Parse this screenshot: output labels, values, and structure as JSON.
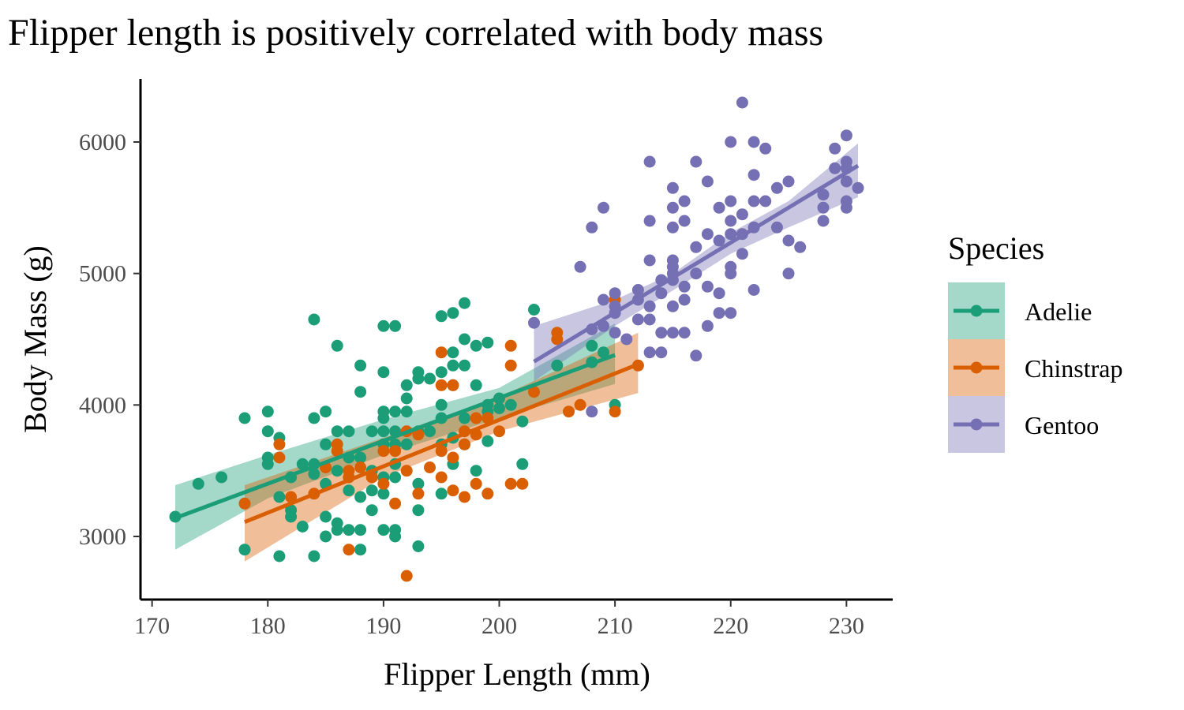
{
  "chart_data": {
    "type": "scatter",
    "title": "Flipper length is positively correlated with body mass",
    "xlabel": "Flipper Length (mm)",
    "ylabel": "Body Mass (g)",
    "xlim": [
      169,
      234
    ],
    "ylim": [
      2520,
      6480
    ],
    "xticks": [
      170,
      180,
      190,
      200,
      210,
      220,
      230
    ],
    "yticks": [
      3000,
      4000,
      5000,
      6000
    ],
    "grid": false,
    "legend": {
      "title": "Species",
      "placement": "right"
    },
    "series": [
      {
        "name": "Adelie",
        "color": "#1b9e77",
        "fit": {
          "x": [
            172,
            210
          ],
          "y": [
            3140,
            4380
          ]
        },
        "band": {
          "x": [
            172,
            180,
            190,
            200,
            210
          ],
          "upper": [
            3390,
            3620,
            3890,
            4130,
            4620
          ],
          "lower": [
            2900,
            3290,
            3620,
            3900,
            4160
          ]
        },
        "points": [
          [
            172,
            3150
          ],
          [
            174,
            3400
          ],
          [
            176,
            3450
          ],
          [
            178,
            3900
          ],
          [
            178,
            2900
          ],
          [
            180,
            3950
          ],
          [
            180,
            3800
          ],
          [
            180,
            3600
          ],
          [
            180,
            3550
          ],
          [
            181,
            3750
          ],
          [
            181,
            2850
          ],
          [
            181,
            3300
          ],
          [
            182,
            3200
          ],
          [
            182,
            3150
          ],
          [
            182,
            3450
          ],
          [
            183,
            3550
          ],
          [
            183,
            3075
          ],
          [
            184,
            4650
          ],
          [
            184,
            3900
          ],
          [
            184,
            3550
          ],
          [
            184,
            3475
          ],
          [
            184,
            2850
          ],
          [
            185,
            3950
          ],
          [
            185,
            3700
          ],
          [
            185,
            3400
          ],
          [
            185,
            3150
          ],
          [
            185,
            3000
          ],
          [
            186,
            4450
          ],
          [
            186,
            3800
          ],
          [
            186,
            3500
          ],
          [
            186,
            3100
          ],
          [
            186,
            3050
          ],
          [
            187,
            3800
          ],
          [
            187,
            3600
          ],
          [
            187,
            3450
          ],
          [
            187,
            3350
          ],
          [
            187,
            3050
          ],
          [
            188,
            4300
          ],
          [
            188,
            4100
          ],
          [
            188,
            3600
          ],
          [
            188,
            3300
          ],
          [
            188,
            3050
          ],
          [
            188,
            2900
          ],
          [
            189,
            3800
          ],
          [
            189,
            3500
          ],
          [
            189,
            3350
          ],
          [
            189,
            3200
          ],
          [
            190,
            4600
          ],
          [
            190,
            4250
          ],
          [
            190,
            3950
          ],
          [
            190,
            3900
          ],
          [
            190,
            3800
          ],
          [
            190,
            3700
          ],
          [
            190,
            3450
          ],
          [
            190,
            3325
          ],
          [
            190,
            3050
          ],
          [
            191,
            4600
          ],
          [
            191,
            3950
          ],
          [
            191,
            3800
          ],
          [
            191,
            3700
          ],
          [
            191,
            3550
          ],
          [
            191,
            3450
          ],
          [
            191,
            3050
          ],
          [
            191,
            3000
          ],
          [
            192,
            4150
          ],
          [
            192,
            4050
          ],
          [
            192,
            3950
          ],
          [
            192,
            3700
          ],
          [
            193,
            4250
          ],
          [
            193,
            4200
          ],
          [
            193,
            3800
          ],
          [
            193,
            3400
          ],
          [
            193,
            3200
          ],
          [
            193,
            2925
          ],
          [
            194,
            4200
          ],
          [
            194,
            3800
          ],
          [
            195,
            4675
          ],
          [
            195,
            4250
          ],
          [
            195,
            4000
          ],
          [
            195,
            3900
          ],
          [
            195,
            3700
          ],
          [
            195,
            3325
          ],
          [
            196,
            4700
          ],
          [
            196,
            4400
          ],
          [
            196,
            4300
          ],
          [
            196,
            4150
          ],
          [
            196,
            3750
          ],
          [
            196,
            3550
          ],
          [
            197,
            4775
          ],
          [
            197,
            4500
          ],
          [
            197,
            4300
          ],
          [
            197,
            3900
          ],
          [
            197,
            3700
          ],
          [
            198,
            4450
          ],
          [
            198,
            4150
          ],
          [
            198,
            3500
          ],
          [
            199,
            4475
          ],
          [
            199,
            4000
          ],
          [
            199,
            3950
          ],
          [
            199,
            3725
          ],
          [
            200,
            4050
          ],
          [
            200,
            3975
          ],
          [
            201,
            4000
          ],
          [
            202,
            3875
          ],
          [
            202,
            3550
          ],
          [
            203,
            4725
          ],
          [
            205,
            4300
          ],
          [
            208,
            4450
          ],
          [
            208,
            4325
          ],
          [
            209,
            4400
          ],
          [
            210,
            4000
          ]
        ]
      },
      {
        "name": "Chinstrap",
        "color": "#d95f02",
        "fit": {
          "x": [
            178,
            212
          ],
          "y": [
            3110,
            4310
          ]
        },
        "band": {
          "x": [
            178,
            190,
            200,
            212
          ],
          "upper": [
            3390,
            3750,
            4060,
            4550
          ],
          "lower": [
            2810,
            3450,
            3800,
            4090
          ]
        },
        "points": [
          [
            178,
            3250
          ],
          [
            181,
            3700
          ],
          [
            181,
            3600
          ],
          [
            182,
            3300
          ],
          [
            184,
            3325
          ],
          [
            185,
            3525
          ],
          [
            186,
            3700
          ],
          [
            186,
            3650
          ],
          [
            187,
            3500
          ],
          [
            187,
            3450
          ],
          [
            187,
            2900
          ],
          [
            188,
            3525
          ],
          [
            189,
            3450
          ],
          [
            190,
            3650
          ],
          [
            190,
            3400
          ],
          [
            191,
            3650
          ],
          [
            191,
            3250
          ],
          [
            192,
            3800
          ],
          [
            192,
            3500
          ],
          [
            192,
            2700
          ],
          [
            193,
            3775
          ],
          [
            193,
            3325
          ],
          [
            194,
            3525
          ],
          [
            195,
            4400
          ],
          [
            195,
            4150
          ],
          [
            195,
            3650
          ],
          [
            195,
            3450
          ],
          [
            196,
            4150
          ],
          [
            196,
            3600
          ],
          [
            196,
            3350
          ],
          [
            197,
            3800
          ],
          [
            197,
            3700
          ],
          [
            197,
            3300
          ],
          [
            198,
            3900
          ],
          [
            198,
            3775
          ],
          [
            198,
            3400
          ],
          [
            199,
            3900
          ],
          [
            199,
            3325
          ],
          [
            200,
            3800
          ],
          [
            201,
            4450
          ],
          [
            201,
            4300
          ],
          [
            201,
            3400
          ],
          [
            202,
            3400
          ],
          [
            203,
            4100
          ],
          [
            205,
            4550
          ],
          [
            205,
            4500
          ],
          [
            206,
            3950
          ],
          [
            207,
            4000
          ],
          [
            210,
            4800
          ],
          [
            210,
            3950
          ],
          [
            212,
            4300
          ]
        ]
      },
      {
        "name": "Gentoo",
        "color": "#7570b3",
        "fit": {
          "x": [
            203,
            231
          ],
          "y": [
            4330,
            5820
          ]
        },
        "band": {
          "x": [
            203,
            210,
            215,
            220,
            225,
            231
          ],
          "upper": [
            4600,
            4800,
            5000,
            5310,
            5550,
            5990
          ],
          "lower": [
            4180,
            4600,
            4870,
            5150,
            5350,
            5580
          ]
        },
        "points": [
          [
            203,
            4625
          ],
          [
            207,
            5050
          ],
          [
            208,
            5350
          ],
          [
            208,
            4575
          ],
          [
            208,
            3950
          ],
          [
            209,
            5500
          ],
          [
            209,
            4800
          ],
          [
            209,
            4600
          ],
          [
            210,
            4850
          ],
          [
            210,
            4750
          ],
          [
            210,
            4700
          ],
          [
            210,
            4550
          ],
          [
            211,
            4500
          ],
          [
            212,
            4875
          ],
          [
            212,
            4650
          ],
          [
            212,
            4800
          ],
          [
            213,
            5850
          ],
          [
            213,
            5400
          ],
          [
            213,
            5100
          ],
          [
            213,
            4750
          ],
          [
            213,
            4650
          ],
          [
            213,
            4400
          ],
          [
            214,
            4950
          ],
          [
            214,
            4850
          ],
          [
            214,
            4550
          ],
          [
            214,
            4400
          ],
          [
            215,
            5650
          ],
          [
            215,
            5500
          ],
          [
            215,
            5350
          ],
          [
            215,
            5100
          ],
          [
            215,
            5050
          ],
          [
            215,
            5000
          ],
          [
            215,
            4950
          ],
          [
            215,
            4750
          ],
          [
            215,
            4550
          ],
          [
            216,
            5550
          ],
          [
            216,
            5400
          ],
          [
            216,
            4900
          ],
          [
            216,
            4800
          ],
          [
            216,
            4550
          ],
          [
            217,
            5850
          ],
          [
            217,
            5200
          ],
          [
            217,
            5000
          ],
          [
            217,
            4375
          ],
          [
            218,
            5700
          ],
          [
            218,
            5300
          ],
          [
            218,
            4900
          ],
          [
            218,
            4600
          ],
          [
            219,
            5500
          ],
          [
            219,
            5250
          ],
          [
            219,
            4850
          ],
          [
            219,
            4700
          ],
          [
            220,
            6000
          ],
          [
            220,
            5550
          ],
          [
            220,
            5400
          ],
          [
            220,
            5300
          ],
          [
            220,
            5050
          ],
          [
            220,
            5000
          ],
          [
            220,
            4700
          ],
          [
            221,
            6300
          ],
          [
            221,
            5450
          ],
          [
            221,
            5300
          ],
          [
            221,
            5150
          ],
          [
            222,
            6000
          ],
          [
            222,
            5750
          ],
          [
            222,
            5550
          ],
          [
            222,
            5350
          ],
          [
            222,
            4875
          ],
          [
            223,
            5950
          ],
          [
            223,
            5550
          ],
          [
            224,
            5650
          ],
          [
            224,
            5350
          ],
          [
            225,
            5700
          ],
          [
            225,
            5250
          ],
          [
            225,
            5000
          ],
          [
            226,
            5200
          ],
          [
            228,
            5600
          ],
          [
            228,
            5500
          ],
          [
            228,
            5400
          ],
          [
            229,
            5950
          ],
          [
            229,
            5800
          ],
          [
            230,
            6050
          ],
          [
            230,
            5850
          ],
          [
            230,
            5800
          ],
          [
            230,
            5700
          ],
          [
            230,
            5550
          ],
          [
            230,
            5500
          ],
          [
            231,
            5650
          ]
        ]
      }
    ]
  }
}
